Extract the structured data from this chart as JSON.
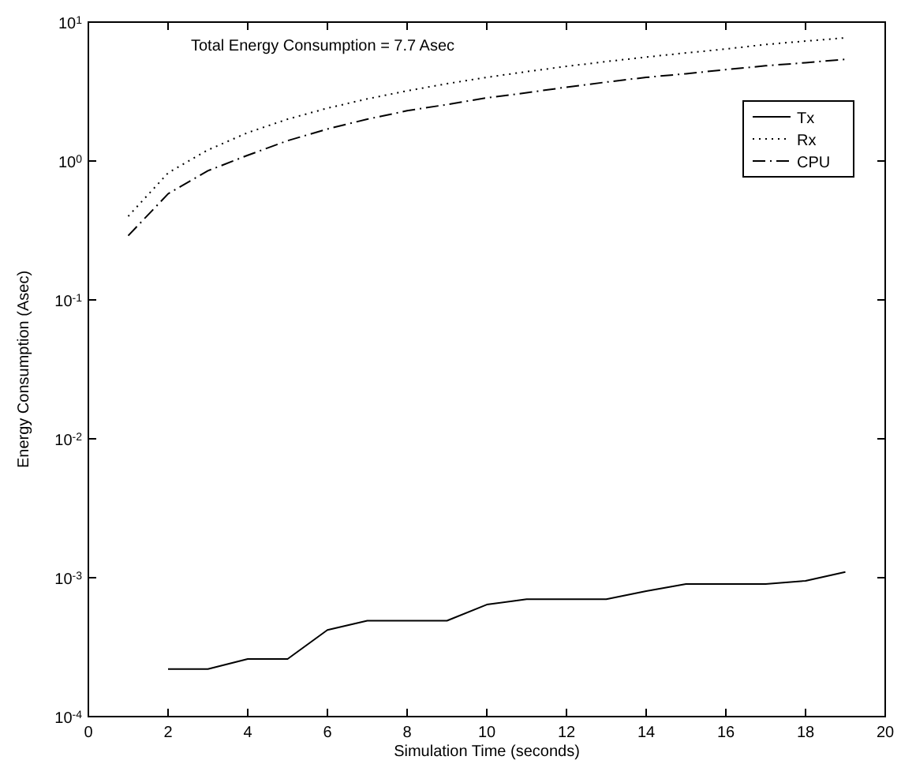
{
  "chart_data": {
    "type": "line",
    "xlabel": "Simulation Time (seconds)",
    "ylabel": "Energy Consumption (Asec)",
    "annotations": [
      "Total Energy Consumption = 7.7 Asec"
    ],
    "log": "y",
    "xlim": [
      0,
      20
    ],
    "xticks": [
      0,
      2,
      4,
      6,
      8,
      10,
      12,
      14,
      16,
      18,
      20
    ],
    "ylim": [
      0.0001,
      10
    ],
    "yticks": [
      {
        "value": 0.0001,
        "label": "10$^{-4}$"
      },
      {
        "value": 0.001,
        "label": "10$^{-3}$"
      },
      {
        "value": 0.01,
        "label": "10$^{-2}$"
      },
      {
        "value": 0.1,
        "label": "10$^{-1}$"
      },
      {
        "value": 1,
        "label": "10$^{0}$"
      },
      {
        "value": 10,
        "label": "10$^{1}$"
      }
    ],
    "legend": "top right",
    "grid": false,
    "series": [
      {
        "name": "Tx",
        "color": "#000000",
        "line_style": "solid",
        "x": [
          2,
          3,
          4,
          5,
          6,
          7,
          8,
          9,
          10,
          11,
          12,
          13,
          14,
          15,
          16,
          17,
          18,
          19
        ],
        "values": [
          0.00022,
          0.00022,
          0.00026,
          0.00026,
          0.00042,
          0.00049,
          0.00049,
          0.00049,
          0.00064,
          0.0007,
          0.0007,
          0.0007,
          0.0008,
          0.0009,
          0.0009,
          0.0009,
          0.00095,
          0.0011
        ]
      },
      {
        "name": "Rx",
        "color": "#000000",
        "line_style": "dotted",
        "x": [
          1,
          2,
          3,
          4,
          5,
          6,
          7,
          8,
          9,
          10,
          11,
          12,
          13,
          14,
          15,
          16,
          17,
          18,
          19
        ],
        "values": [
          0.4,
          0.82,
          1.2,
          1.6,
          2.0,
          2.4,
          2.8,
          3.2,
          3.6,
          4.0,
          4.4,
          4.8,
          5.2,
          5.6,
          6.0,
          6.4,
          6.9,
          7.3,
          7.7
        ]
      },
      {
        "name": "CPU",
        "color": "#000000",
        "line_style": "dashdot",
        "x": [
          1,
          2,
          3,
          4,
          5,
          6,
          7,
          8,
          9,
          10,
          11,
          12,
          13,
          14,
          15,
          16,
          17,
          18,
          19
        ],
        "values": [
          0.29,
          0.58,
          0.85,
          1.1,
          1.4,
          1.7,
          2.0,
          2.3,
          2.55,
          2.85,
          3.1,
          3.4,
          3.7,
          4.0,
          4.25,
          4.55,
          4.85,
          5.1,
          5.4
        ]
      }
    ]
  }
}
